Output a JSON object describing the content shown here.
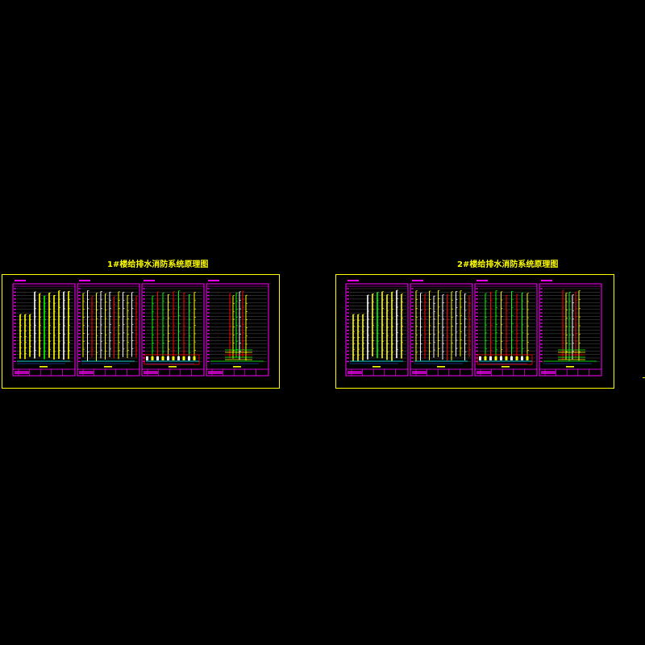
{
  "sheets": [
    {
      "title": "1#楼给排水消防系统原理图",
      "panel_count": 4
    },
    {
      "title": "2#楼给排水消防系统原理图",
      "panel_count": 4
    }
  ],
  "colors": {
    "background": "#000000",
    "title": "#ffff00",
    "outer_frame": "#ffff00",
    "inner_frame": "#ff00ff",
    "pipe_yellow": "#ffff00",
    "pipe_green": "#00ff00",
    "pipe_red": "#ff0000",
    "pipe_cyan": "#00ffff",
    "pipe_white": "#ffffff",
    "pipe_blue": "#3a5cff"
  }
}
